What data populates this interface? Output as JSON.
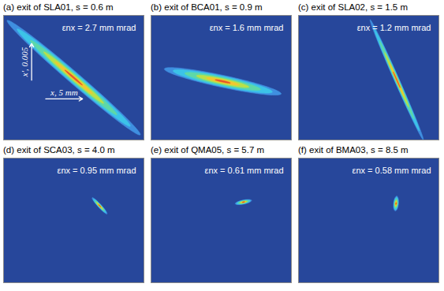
{
  "chart_data": [
    {
      "type": "phase_space",
      "title": "(a) exit of SLA01, s = 0.6 m",
      "annotation": "εnx = 2.7 mm mrad",
      "xlim": [
        -9.5,
        9.5
      ],
      "ylim": [
        -0.0085,
        0.0085
      ],
      "tick_labels": false,
      "beam": {
        "center": [
          0,
          0
        ],
        "major_axis": [
          -9,
          0.0078
        ],
        "minor_axis": [
          0.5,
          0.0006
        ]
      },
      "scale_bars": [
        {
          "axis": "x",
          "length": 5,
          "label": "x, 5 mm"
        },
        {
          "axis": "y",
          "length": 0.005,
          "label": "x', 0.005"
        }
      ]
    },
    {
      "type": "phase_space",
      "title": "(b) exit of BCA01, s = 0.9 m",
      "annotation": "εnx = 1.6 mm mrad",
      "xlim": [
        -9.5,
        9.5
      ],
      "ylim": [
        -0.0085,
        0.0085
      ],
      "tick_labels": false,
      "beam": {
        "center": [
          0.2,
          -0.0005
        ],
        "major_axis": [
          7.9,
          -0.0017
        ],
        "minor_axis": [
          -0.17,
          -0.0008
        ]
      }
    },
    {
      "type": "phase_space",
      "title": "(c) exit of SLA02, s = 1.5 m",
      "annotation": "εnx = 1.2 mm mrad",
      "xlim": [
        -9.5,
        9.5
      ],
      "ylim": [
        -0.0085,
        0.0085
      ],
      "tick_labels": false,
      "beam": {
        "center": [
          3.8,
          -0.0003
        ],
        "major_axis": [
          -3.6,
          0.0082
        ],
        "minor_axis": [
          0.3,
          0.00014
        ]
      }
    },
    {
      "type": "phase_space",
      "title": "(d) exit of SCA03, s = 4.0 m",
      "annotation": "εnx = 0.95 mm mrad",
      "xlim": [
        -9.5,
        9.5
      ],
      "ylim": [
        -0.0085,
        0.0085
      ],
      "tick_labels": false,
      "beam": {
        "center": [
          3.5,
          0.002
        ],
        "major_axis": [
          1.0,
          -0.0011
        ],
        "minor_axis": [
          0.17,
          0.00015
        ]
      }
    },
    {
      "type": "phase_space",
      "title": "(e) exit of QMA05, s = 5.7 m",
      "annotation": "εnx = 0.61 mm mrad",
      "xlim": [
        -9.5,
        9.5
      ],
      "ylim": [
        -0.0085,
        0.0085
      ],
      "tick_labels": false,
      "beam": {
        "center": [
          3.0,
          0.0025
        ],
        "major_axis": [
          1.1,
          0.00023
        ],
        "minor_axis": [
          0.06,
          -0.00027
        ]
      }
    },
    {
      "type": "phase_space",
      "title": "(f) exit of BMA03, s = 8.5 m",
      "annotation": "εnx = 0.58 mm mrad",
      "xlim": [
        -9.5,
        9.5
      ],
      "ylim": [
        -0.0085,
        0.0085
      ],
      "tick_labels": false,
      "beam": {
        "center": [
          3.7,
          0.0023
        ],
        "major_axis": [
          0.1,
          0.001
        ],
        "minor_axis": [
          0.33,
          -3e-05
        ]
      }
    }
  ]
}
